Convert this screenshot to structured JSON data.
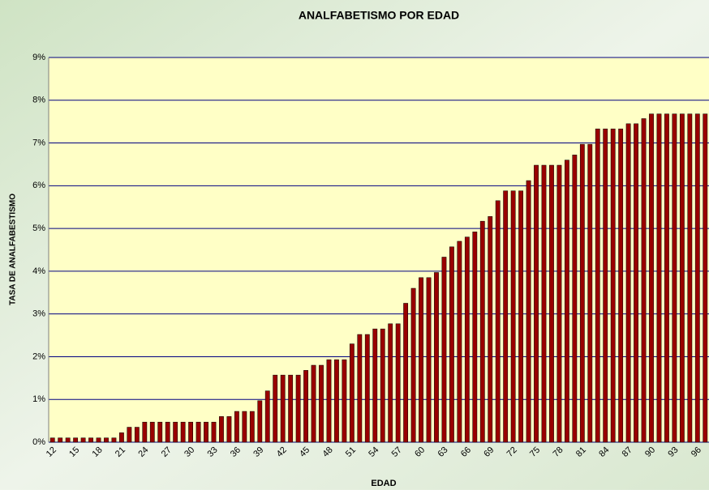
{
  "chart_data": {
    "type": "bar",
    "title": "ANALFABETISMO POR EDAD",
    "x_label": "EDAD",
    "y_label": "TASA DE ANALFABESTISMO",
    "categories": [
      "12",
      null,
      null,
      "15",
      null,
      null,
      "18",
      null,
      null,
      "21",
      null,
      null,
      "24",
      null,
      null,
      "27",
      null,
      null,
      "30",
      null,
      null,
      "33",
      null,
      null,
      "36",
      null,
      null,
      "39",
      null,
      null,
      "42",
      null,
      null,
      "45",
      null,
      null,
      "48",
      null,
      null,
      "51",
      null,
      null,
      "54",
      null,
      null,
      "57",
      null,
      null,
      "60",
      null,
      null,
      "63",
      null,
      null,
      "66",
      null,
      null,
      "69",
      null,
      null,
      "72",
      null,
      null,
      "75",
      null,
      null,
      "78",
      null,
      null,
      "81",
      null,
      null,
      "84",
      null,
      null,
      "87",
      null,
      null,
      "90",
      null,
      null,
      "93",
      null,
      null,
      "96",
      null
    ],
    "values": [
      0.1,
      0.1,
      0.1,
      0.1,
      0.1,
      0.1,
      0.1,
      0.1,
      0.1,
      0.22,
      0.35,
      0.35,
      0.47,
      0.47,
      0.47,
      0.47,
      0.47,
      0.47,
      0.47,
      0.47,
      0.47,
      0.47,
      0.6,
      0.6,
      0.72,
      0.72,
      0.72,
      0.97,
      1.2,
      1.57,
      1.57,
      1.57,
      1.57,
      1.68,
      1.8,
      1.8,
      1.93,
      1.93,
      1.93,
      2.3,
      2.52,
      2.52,
      2.65,
      2.65,
      2.77,
      2.77,
      3.25,
      3.6,
      3.85,
      3.85,
      3.97,
      4.33,
      4.57,
      4.7,
      4.8,
      4.92,
      5.17,
      5.28,
      5.65,
      5.88,
      5.88,
      5.88,
      6.12,
      6.48,
      6.48,
      6.48,
      6.48,
      6.6,
      6.72,
      6.97,
      6.97,
      7.33,
      7.33,
      7.33,
      7.33,
      7.45,
      7.45,
      7.57,
      7.68,
      7.68,
      7.68,
      7.68,
      7.68,
      7.68,
      7.68,
      7.68
    ],
    "color": "#990000",
    "ylim": [
      0,
      9
    ],
    "yticks": [
      {
        "value": 0,
        "label": "0%"
      },
      {
        "value": 1,
        "label": "1%"
      },
      {
        "value": 2,
        "label": "2%"
      },
      {
        "value": 3,
        "label": "3%"
      },
      {
        "value": 4,
        "label": "4%"
      },
      {
        "value": 5,
        "label": "5%"
      },
      {
        "value": 6,
        "label": "6%"
      },
      {
        "value": 7,
        "label": "7%"
      },
      {
        "value": 8,
        "label": "8%"
      },
      {
        "value": 9,
        "label": "9%"
      }
    ],
    "grid": true
  }
}
